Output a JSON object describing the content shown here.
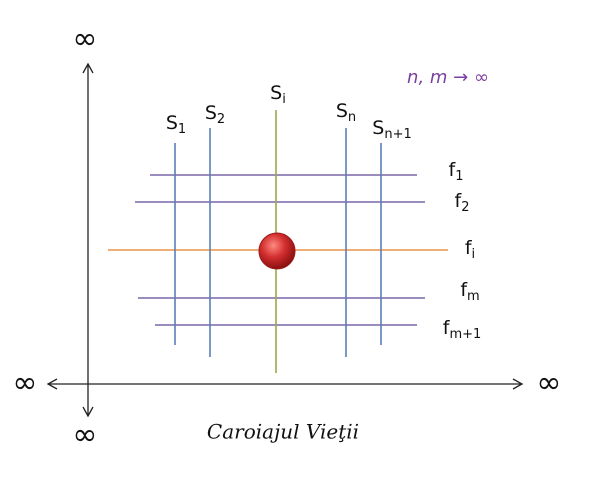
{
  "axis_labels": {
    "top": "∞",
    "bottom": "∞",
    "left": "∞",
    "right": "∞"
  },
  "note": "n,  m → ∞",
  "caption": "Caroiajul Vieţii",
  "vertical_lines": [
    {
      "base": "S",
      "sub": "1"
    },
    {
      "base": "S",
      "sub": "2"
    },
    {
      "base": "S",
      "sub": "i"
    },
    {
      "base": "S",
      "sub": "n"
    },
    {
      "base": "S",
      "sub": "n+1"
    }
  ],
  "horizontal_lines": [
    {
      "base": "f",
      "sub": "1"
    },
    {
      "base": "f",
      "sub": "2"
    },
    {
      "base": "f",
      "sub": "i"
    },
    {
      "base": "f",
      "sub": "m"
    },
    {
      "base": "f",
      "sub": "m+1"
    }
  ]
}
